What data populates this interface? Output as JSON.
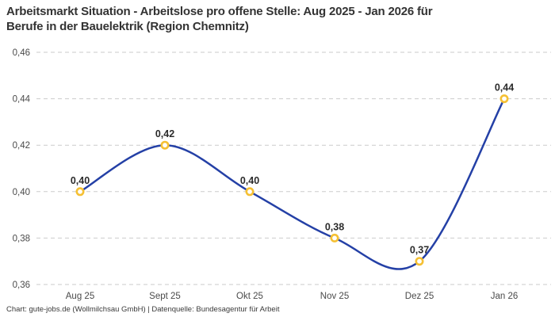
{
  "title": {
    "line1": "Arbeitsmarkt Situation - Arbeitslose pro offene Stelle: Aug 2025 - Jan 2026 für",
    "line2": "Berufe in der Bauelektrik (Region Chemnitz)"
  },
  "footer": "Chart: gute-jobs.de (Wollmilchsau GmbH) | Datenquelle: Bundesagentur für Arbeit",
  "chart_data": {
    "type": "line",
    "title": "Arbeitsmarkt Situation - Arbeitslose pro offene Stelle: Aug 2025 - Jan 2026 für Berufe in der Bauelektrik (Region Chemnitz)",
    "categories": [
      "Aug 25",
      "Sept 25",
      "Okt 25",
      "Nov 25",
      "Dez 25",
      "Jan 26"
    ],
    "values": [
      0.4,
      0.42,
      0.4,
      0.38,
      0.37,
      0.44
    ],
    "value_labels": [
      "0,40",
      "0,42",
      "0,40",
      "0,38",
      "0,37",
      "0,44"
    ],
    "xlabel": "",
    "ylabel": "",
    "ylim": [
      0.36,
      0.46
    ],
    "yticks": [
      0.46,
      0.44,
      0.42,
      0.4,
      0.38,
      0.36
    ],
    "ytick_labels": [
      "0,46",
      "0,44",
      "0,42",
      "0,40",
      "0,38",
      "0,36"
    ],
    "grid": "horizontal-dashed",
    "legend": "none",
    "line_color": "#2440a6",
    "marker_ring_color": "#f5c033",
    "marker_fill_color": "#ffffff",
    "grid_color": "#cbcbcb",
    "tick_label_color": "#4a4a4a",
    "data_label_color": "#2b2b2b"
  }
}
